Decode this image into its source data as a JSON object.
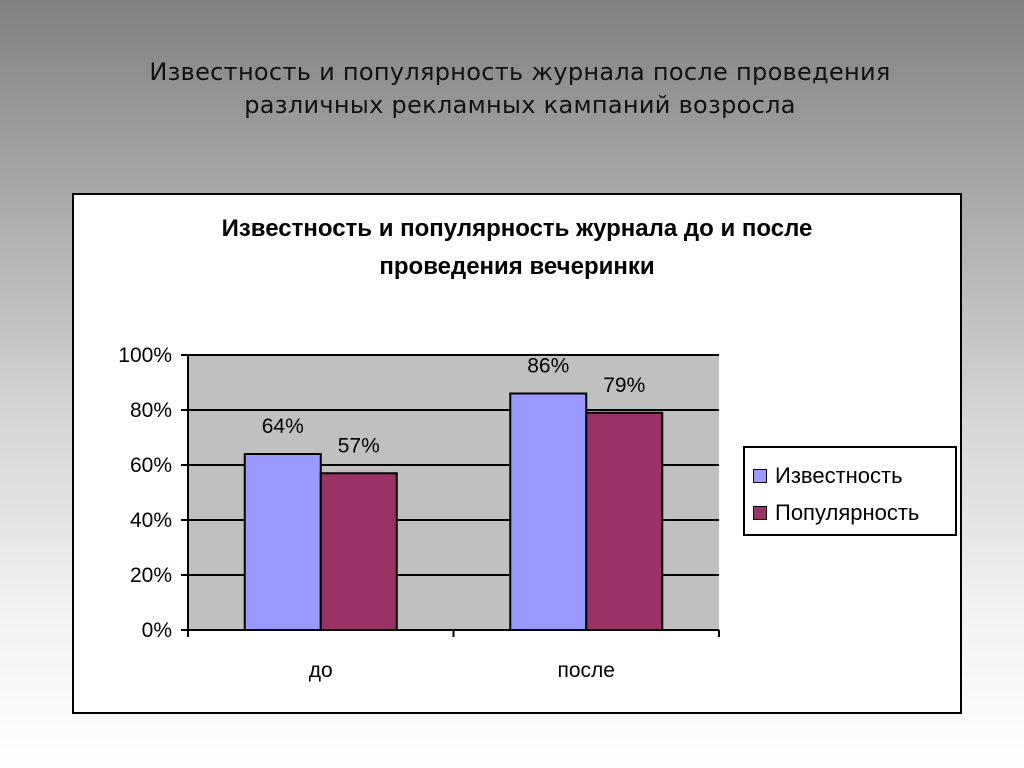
{
  "slide": {
    "title_lines": [
      "Известность и популярность журнала после проведения",
      "различных рекламных кампаний возросла"
    ]
  },
  "chart_data": {
    "type": "bar",
    "title_lines": [
      "Известность и популярность журнала до и после",
      "проведения вечеринки"
    ],
    "categories": [
      "до",
      "после"
    ],
    "series": [
      {
        "name": "Известность",
        "values": [
          64,
          86
        ],
        "labels": [
          "64%",
          "86%"
        ],
        "color": "#9999ff"
      },
      {
        "name": "Популярность",
        "values": [
          57,
          79
        ],
        "labels": [
          "57%",
          "79%"
        ],
        "color": "#993366"
      }
    ],
    "ylim": [
      0,
      100
    ],
    "yticks": [
      0,
      20,
      40,
      60,
      80,
      100
    ],
    "ytick_labels": [
      "0%",
      "20%",
      "40%",
      "60%",
      "80%",
      "100%"
    ],
    "grid": true,
    "plot_background": "#c0c0c0",
    "legend_position": "right"
  }
}
